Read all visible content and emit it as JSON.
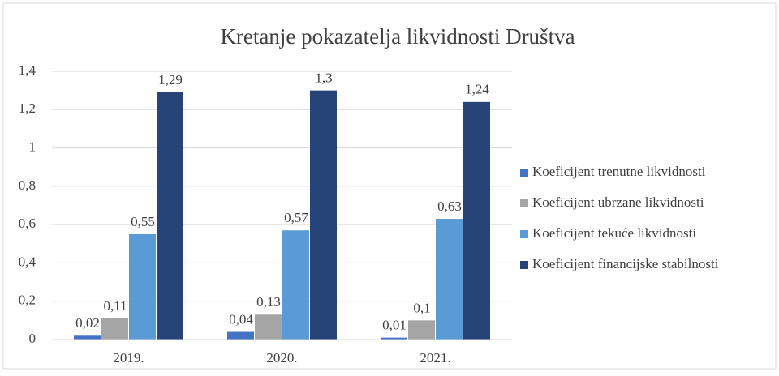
{
  "chart_data": {
    "type": "bar",
    "title": "Kretanje pokazatelja likvidnosti Društva",
    "categories": [
      "2019.",
      "2020.",
      "2021."
    ],
    "series": [
      {
        "name": "Koeficijent trenutne likvidnosti",
        "color": "#4472c4",
        "values": [
          0.02,
          0.04,
          0.01
        ],
        "value_labels": [
          "0,02",
          "0,04",
          "0,01"
        ]
      },
      {
        "name": "Koeficijent ubrzane likvidnosti",
        "color": "#a5a5a5",
        "values": [
          0.11,
          0.13,
          0.1
        ],
        "value_labels": [
          "0,11",
          "0,13",
          "0,1"
        ]
      },
      {
        "name": "Koeficijent tekuće likvidnosti",
        "color": "#5b9bd5",
        "values": [
          0.55,
          0.57,
          0.63
        ],
        "value_labels": [
          "0,55",
          "0,57",
          "0,63"
        ]
      },
      {
        "name": "Koeficijent financijske stabilnosti",
        "color": "#264478",
        "values": [
          1.29,
          1.3,
          1.24
        ],
        "value_labels": [
          "1,29",
          "1,3",
          "1,24"
        ]
      }
    ],
    "ylim": [
      0,
      1.4
    ],
    "yticks": [
      0,
      {
        "value": 0.2,
        "label": "0,2"
      },
      {
        "value": 0.4,
        "label": "0,4"
      },
      {
        "value": 0.6,
        "label": "0,6"
      },
      {
        "value": 0.8,
        "label": "0,8"
      },
      1,
      {
        "value": 1.2,
        "label": "1,2"
      },
      {
        "value": 1.4,
        "label": "1,4"
      }
    ],
    "grid": true,
    "legend": "right"
  }
}
